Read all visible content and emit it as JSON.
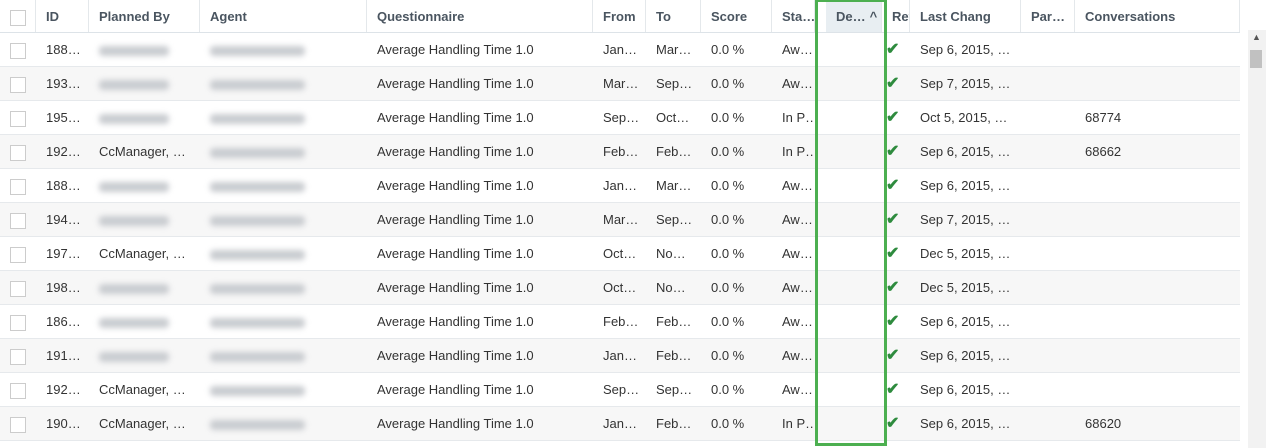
{
  "headers": [
    "ID",
    "Planned By",
    "Agent",
    "Questionnaire",
    "From",
    "To",
    "Score",
    "Sta…",
    "De…",
    "Rev",
    "Last Chang",
    "Par…",
    "Conversations"
  ],
  "sort_indicator": "^",
  "rows": [
    {
      "id": "188…",
      "planned_by": "",
      "agent": "",
      "questionnaire": "Average Handling Time 1.0",
      "from": "Jan…",
      "to": "Mar…",
      "score": "0.0 %",
      "status": "Aw…",
      "last_change": "Sep 6, 2015, …",
      "conversations": ""
    },
    {
      "id": "193…",
      "planned_by": "",
      "agent": "",
      "questionnaire": "Average Handling Time 1.0",
      "from": "Mar…",
      "to": "Sep…",
      "score": "0.0 %",
      "status": "Aw…",
      "last_change": "Sep 7, 2015, …",
      "conversations": ""
    },
    {
      "id": "195…",
      "planned_by": "",
      "agent": "",
      "questionnaire": "Average Handling Time 1.0",
      "from": "Sep…",
      "to": "Oct…",
      "score": "0.0 %",
      "status": "In P…",
      "last_change": "Oct 5, 2015, …",
      "conversations": "68774"
    },
    {
      "id": "192…",
      "planned_by": "CcManager, …",
      "agent": "",
      "questionnaire": "Average Handling Time 1.0",
      "from": "Feb…",
      "to": "Feb…",
      "score": "0.0 %",
      "status": "In P…",
      "last_change": "Sep 6, 2015, …",
      "conversations": "68662"
    },
    {
      "id": "188…",
      "planned_by": "",
      "agent": "",
      "questionnaire": "Average Handling Time 1.0",
      "from": "Jan…",
      "to": "Mar…",
      "score": "0.0 %",
      "status": "Aw…",
      "last_change": "Sep 6, 2015, …",
      "conversations": ""
    },
    {
      "id": "194…",
      "planned_by": "",
      "agent": "",
      "questionnaire": "Average Handling Time 1.0",
      "from": "Mar…",
      "to": "Sep…",
      "score": "0.0 %",
      "status": "Aw…",
      "last_change": "Sep 7, 2015, …",
      "conversations": ""
    },
    {
      "id": "197…",
      "planned_by": "CcManager, …",
      "agent": "",
      "questionnaire": "Average Handling Time 1.0",
      "from": "Oct…",
      "to": "No…",
      "score": "0.0 %",
      "status": "Aw…",
      "last_change": "Dec 5, 2015, …",
      "conversations": ""
    },
    {
      "id": "198…",
      "planned_by": "",
      "agent": "",
      "questionnaire": "Average Handling Time 1.0",
      "from": "Oct…",
      "to": "No…",
      "score": "0.0 %",
      "status": "Aw…",
      "last_change": "Dec 5, 2015, …",
      "conversations": ""
    },
    {
      "id": "186…",
      "planned_by": "",
      "agent": "",
      "questionnaire": "Average Handling Time 1.0",
      "from": "Feb…",
      "to": "Feb…",
      "score": "0.0 %",
      "status": "Aw…",
      "last_change": "Sep 6, 2015, …",
      "conversations": ""
    },
    {
      "id": "191…",
      "planned_by": "",
      "agent": "",
      "questionnaire": "Average Handling Time 1.0",
      "from": "Jan…",
      "to": "Feb…",
      "score": "0.0 %",
      "status": "Aw…",
      "last_change": "Sep 6, 2015, …",
      "conversations": ""
    },
    {
      "id": "192…",
      "planned_by": "CcManager, …",
      "agent": "",
      "questionnaire": "Average Handling Time 1.0",
      "from": "Sep…",
      "to": "Sep…",
      "score": "0.0 %",
      "status": "Aw…",
      "last_change": "Sep 6, 2015, …",
      "conversations": ""
    },
    {
      "id": "190…",
      "planned_by": "CcManager, …",
      "agent": "",
      "questionnaire": "Average Handling Time 1.0",
      "from": "Jan…",
      "to": "Feb…",
      "score": "0.0 %",
      "status": "In P…",
      "last_change": "Sep 6, 2015, …",
      "conversations": "68620"
    }
  ],
  "colors": {
    "highlight": "#4caf50",
    "check": "#2e8b3e"
  }
}
